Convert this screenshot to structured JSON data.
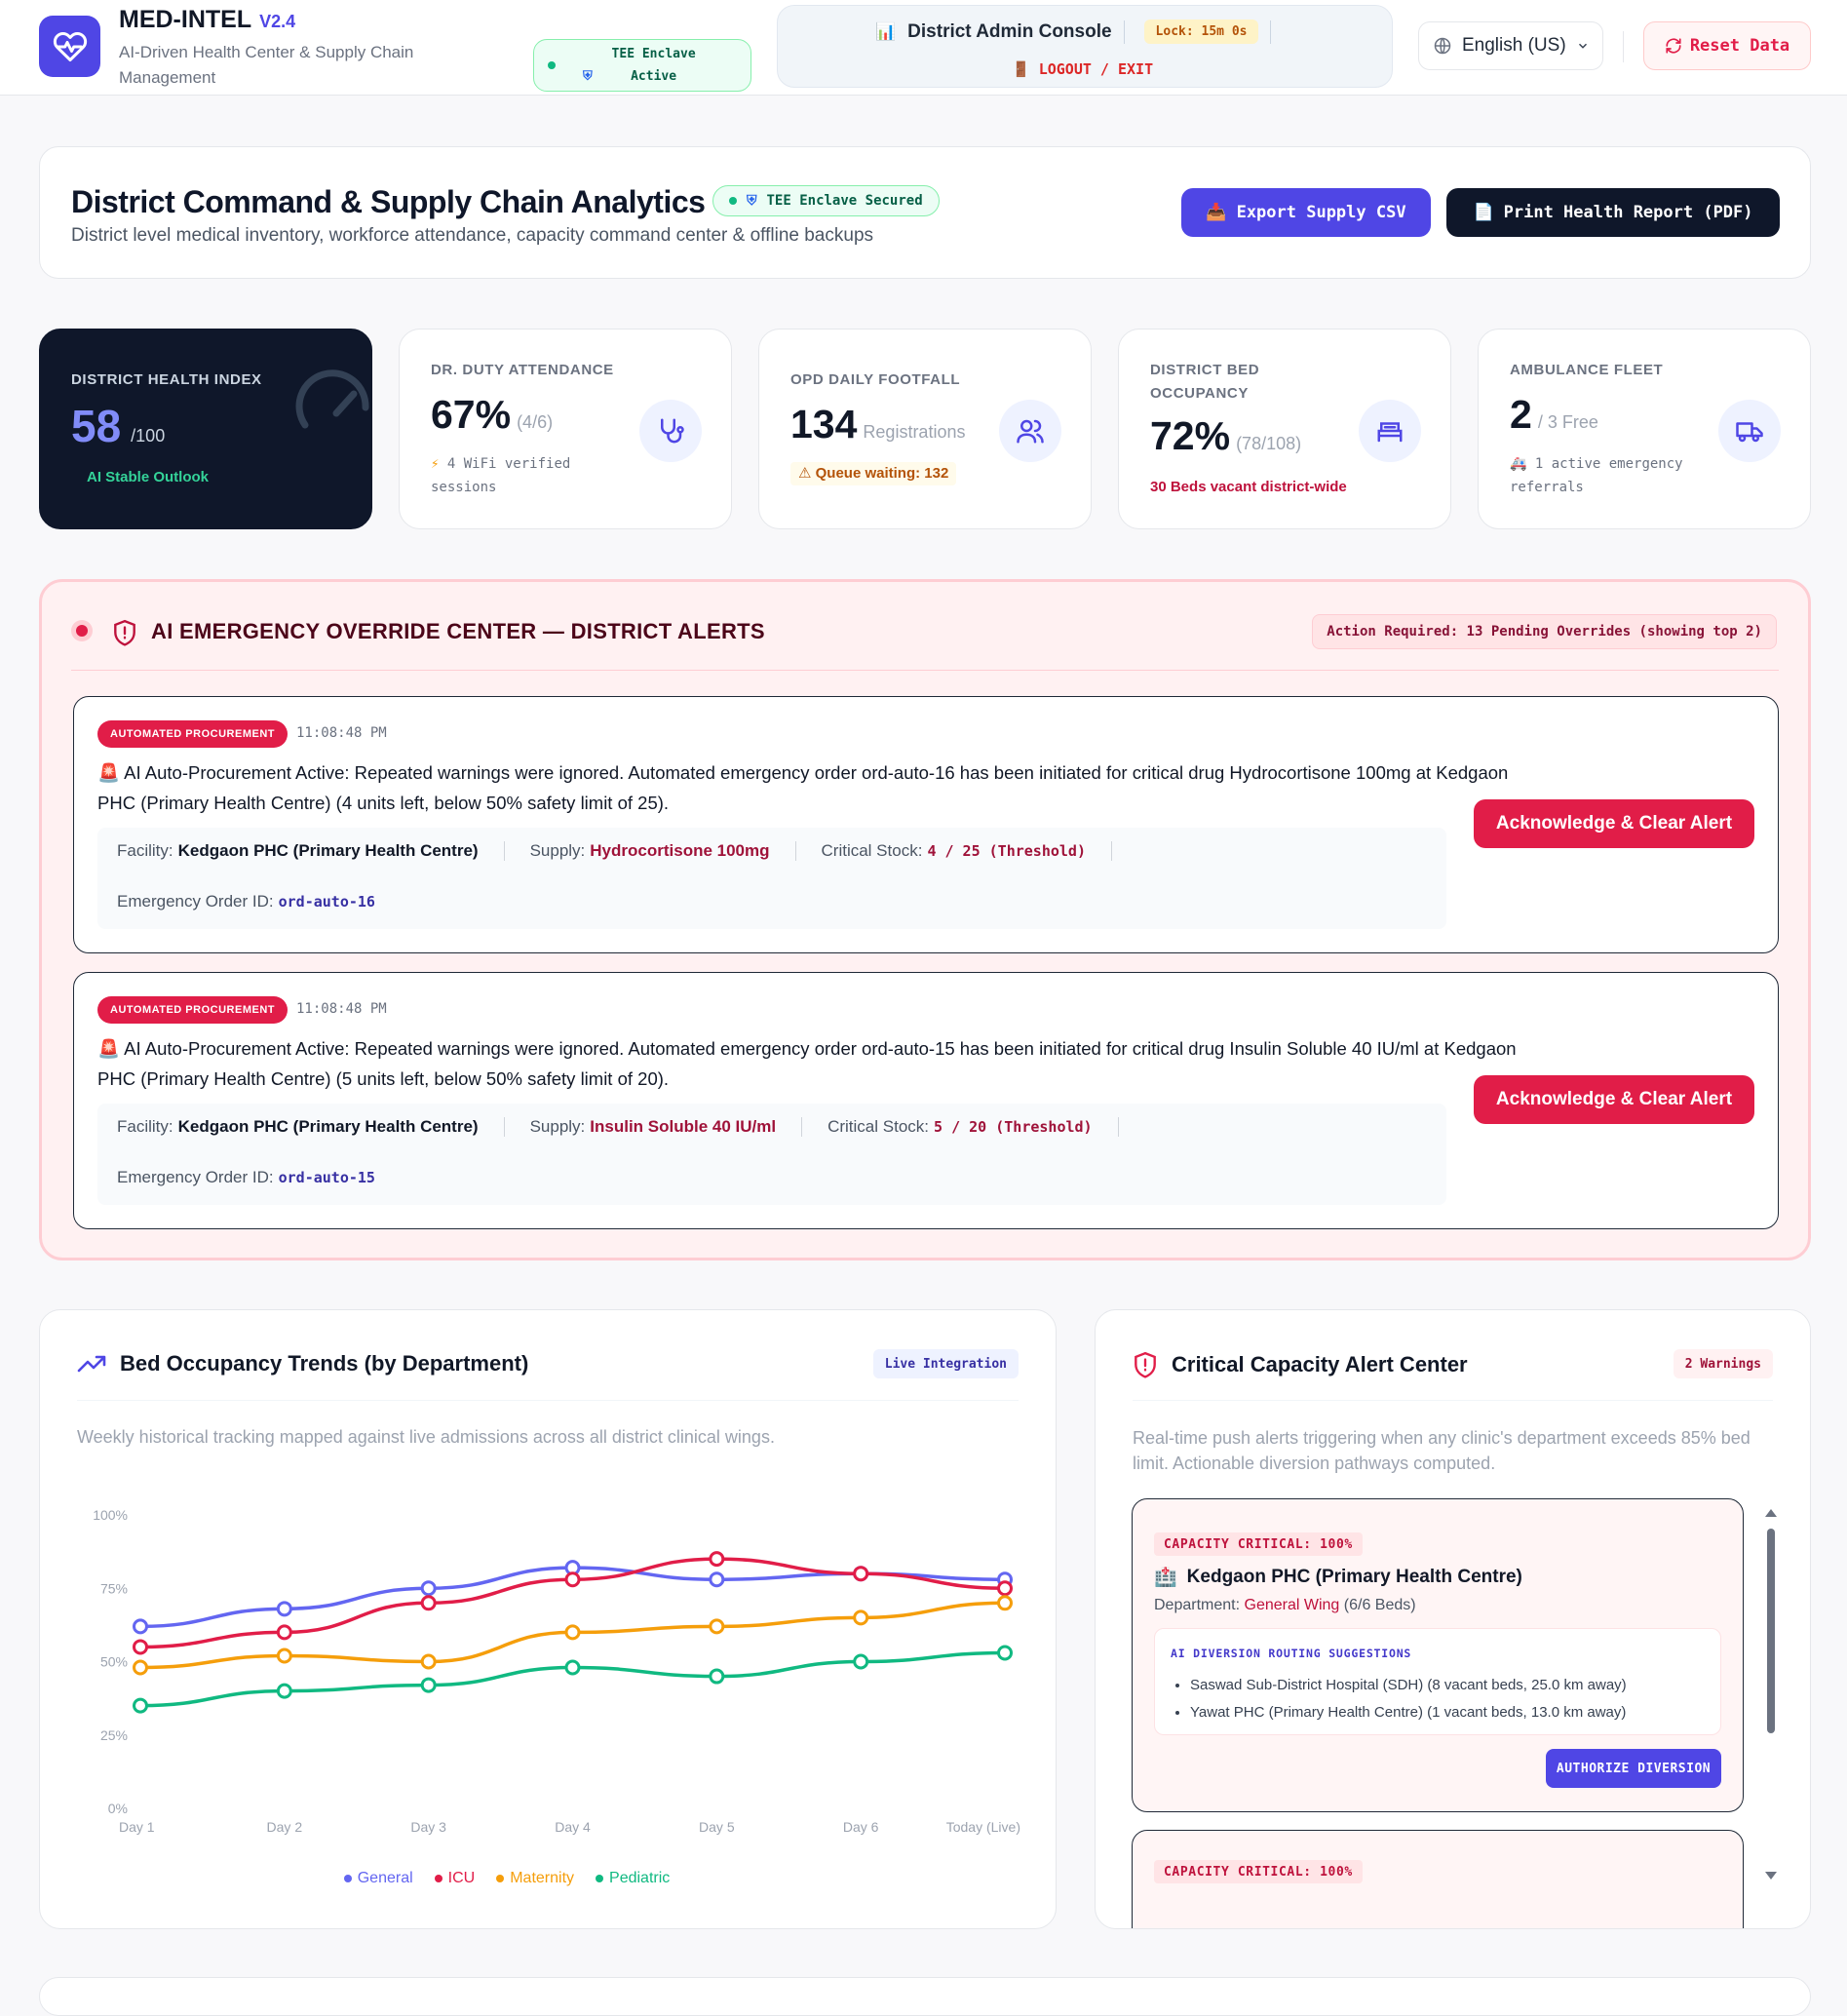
{
  "app": {
    "name": "MED-INTEL",
    "version": "V2.4",
    "subtitle": "AI-Driven Health Center & Supply Chain Management",
    "tee_status": "TEE Enclave Active",
    "console_title": "District Admin Console",
    "lock": "Lock: 15m 0s",
    "logout": "LOGOUT / EXIT",
    "language": "English (US)",
    "reset": "Reset Data",
    "accent": "#4f46e5",
    "danger": "#e11d48"
  },
  "hero": {
    "title": "District Command & Supply Chain Analytics",
    "badge": "TEE Enclave Secured",
    "description": "District level medical inventory, workforce attendance, capacity command center & offline backups",
    "export_label": "Export Supply CSV",
    "print_label": "Print Health Report (PDF)"
  },
  "stats": {
    "health": {
      "label": "DISTRICT HEALTH INDEX",
      "value": "58",
      "unit": "/100",
      "note": "AI Stable Outlook"
    },
    "attendance": {
      "label": "DR. DUTY ATTENDANCE",
      "value": "67%",
      "detail": "(4/6)",
      "note": "4 WiFi verified sessions",
      "icon": "stethoscope-icon"
    },
    "footfall": {
      "label": "OPD DAILY FOOTFALL",
      "value": "134",
      "detail": "Registrations",
      "note": "Queue waiting: 132",
      "icon": "users-icon"
    },
    "beds": {
      "label": "DISTRICT BED OCCUPANCY",
      "value": "72%",
      "detail": "(78/108)",
      "note": "30 Beds vacant district-wide",
      "icon": "bed-icon"
    },
    "ambulance": {
      "label": "AMBULANCE FLEET",
      "value": "2",
      "detail": "/ 3 Free",
      "note": "1 active emergency referrals",
      "icon": "truck-icon"
    }
  },
  "emergency": {
    "title": "AI EMERGENCY OVERRIDE CENTER — DISTRICT ALERTS",
    "action_required": "Action Required: 13 Pending Overrides (showing top 2)",
    "alerts": [
      {
        "tag": "AUTOMATED PROCUREMENT",
        "time": "11:08:48 PM",
        "message": "AI Auto-Procurement Active: Repeated warnings were ignored. Automated emergency order ord-auto-16 has been initiated for critical drug Hydrocortisone 100mg at Kedgaon PHC (Primary Health Centre) (4 units left, below 50% safety limit of 25).",
        "facility_label": "Facility:",
        "facility": "Kedgaon PHC (Primary Health Centre)",
        "supply_label": "Supply:",
        "supply": "Hydrocortisone 100mg",
        "stock_label": "Critical Stock:",
        "stock": "4 / 25 (Threshold)",
        "order_label": "Emergency Order ID:",
        "order_id": "ord-auto-16",
        "button": "Acknowledge & Clear Alert"
      },
      {
        "tag": "AUTOMATED PROCUREMENT",
        "time": "11:08:48 PM",
        "message": "AI Auto-Procurement Active: Repeated warnings were ignored. Automated emergency order ord-auto-15 has been initiated for critical drug Insulin Soluble 40 IU/ml at Kedgaon PHC (Primary Health Centre) (5 units left, below 50% safety limit of 20).",
        "facility_label": "Facility:",
        "facility": "Kedgaon PHC (Primary Health Centre)",
        "supply_label": "Supply:",
        "supply": "Insulin Soluble 40 IU/ml",
        "stock_label": "Critical Stock:",
        "stock": "5 / 20 (Threshold)",
        "order_label": "Emergency Order ID:",
        "order_id": "ord-auto-15",
        "button": "Acknowledge & Clear Alert"
      }
    ]
  },
  "trends": {
    "title": "Bed Occupancy Trends (by Department)",
    "badge": "Live Integration",
    "description": "Weekly historical tracking mapped against live admissions across all district clinical wings."
  },
  "capacity": {
    "title": "Critical Capacity Alert Center",
    "badge": "2 Warnings",
    "description": "Real-time push alerts triggering when any clinic's department exceeds 85% bed limit. Actionable diversion pathways computed.",
    "alerts": [
      {
        "tag": "CAPACITY CRITICAL: 100%",
        "facility": "Kedgaon PHC (Primary Health Centre)",
        "dept_label": "Department:",
        "dept": "General Wing",
        "beds": "(6/6 Beds)",
        "diversion_title": "AI DIVERSION ROUTING SUGGESTIONS",
        "suggestions": [
          "Saswad Sub-District Hospital (SDH) (8 vacant beds, 25.0 km away)",
          "Yawat PHC (Primary Health Centre) (1 vacant beds, 13.0 km away)"
        ],
        "button": "AUTHORIZE DIVERSION"
      },
      {
        "tag": "CAPACITY CRITICAL: 100%"
      }
    ]
  },
  "chart_data": {
    "type": "line",
    "title": "Bed Occupancy Trends (by Department)",
    "x": [
      "Day 1",
      "Day 2",
      "Day 3",
      "Day 4",
      "Day 5",
      "Day 6",
      "Today (Live)"
    ],
    "y_ticks": [
      "0%",
      "25%",
      "50%",
      "75%",
      "100%"
    ],
    "ylim": [
      0,
      100
    ],
    "grid": false,
    "legend": "bottom-center",
    "series": [
      {
        "name": "General",
        "color": "#6366f1",
        "values": [
          62,
          68,
          75,
          82,
          78,
          80,
          78
        ]
      },
      {
        "name": "ICU",
        "color": "#e11d48",
        "values": [
          55,
          60,
          70,
          78,
          85,
          80,
          75
        ]
      },
      {
        "name": "Maternity",
        "color": "#f59e0b",
        "values": [
          48,
          52,
          50,
          60,
          62,
          65,
          70
        ]
      },
      {
        "name": "Pediatric",
        "color": "#10b981",
        "values": [
          35,
          40,
          42,
          48,
          45,
          50,
          53
        ]
      }
    ]
  }
}
